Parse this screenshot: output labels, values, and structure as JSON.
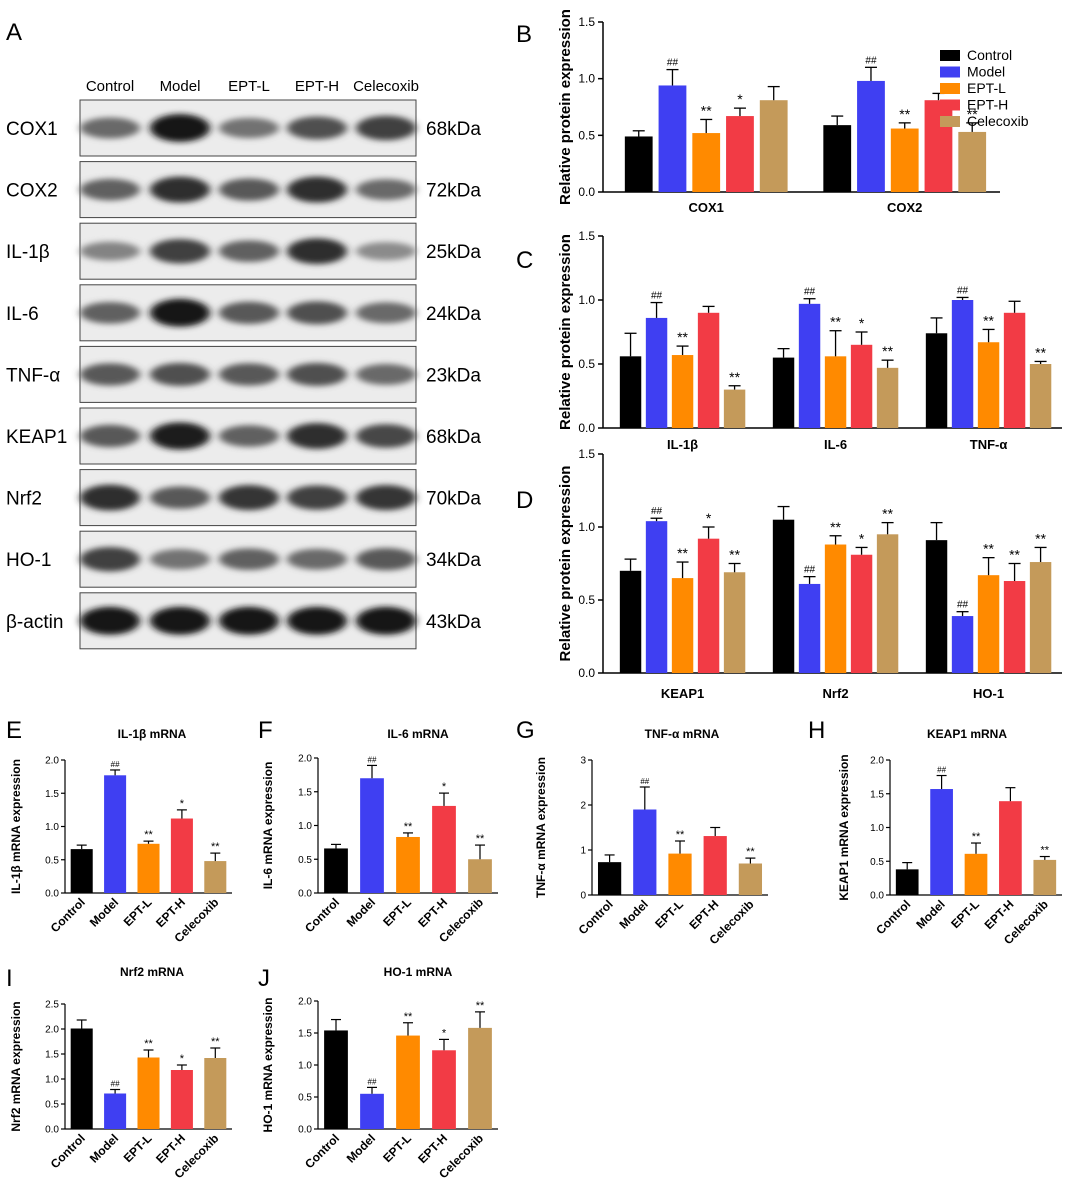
{
  "colors": {
    "Control": "#000000",
    "Model": "#3f3ff2",
    "EPT-L": "#ff8a00",
    "EPT-H": "#f23b45",
    "Celecoxib": "#c49a5a",
    "axis": "#000000"
  },
  "western_blot": {
    "panel_letter": "A",
    "lane_labels": [
      "Control",
      "Model",
      "EPT-L",
      "EPT-H",
      "Celecoxib"
    ],
    "bands": [
      {
        "protein": "COX1",
        "mw": "68kDa",
        "intensity": [
          0.5,
          1.0,
          0.45,
          0.65,
          0.75
        ]
      },
      {
        "protein": "COX2",
        "mw": "72kDa",
        "intensity": [
          0.55,
          0.85,
          0.6,
          0.85,
          0.5
        ]
      },
      {
        "protein": "IL-1β",
        "mw": "25kDa",
        "intensity": [
          0.35,
          0.75,
          0.55,
          0.85,
          0.3
        ]
      },
      {
        "protein": "IL-6",
        "mw": "24kDa",
        "intensity": [
          0.55,
          1.0,
          0.6,
          0.65,
          0.5
        ]
      },
      {
        "protein": "TNF-α",
        "mw": "23kDa",
        "intensity": [
          0.6,
          0.65,
          0.6,
          0.65,
          0.5
        ]
      },
      {
        "protein": "KEAP1",
        "mw": "68kDa",
        "intensity": [
          0.6,
          0.95,
          0.55,
          0.85,
          0.7
        ]
      },
      {
        "protein": "Nrf2",
        "mw": "70kDa",
        "intensity": [
          0.85,
          0.6,
          0.8,
          0.75,
          0.8
        ]
      },
      {
        "protein": "HO-1",
        "mw": "34kDa",
        "intensity": [
          0.75,
          0.45,
          0.55,
          0.5,
          0.6
        ]
      },
      {
        "protein": "β-actin",
        "mw": "43kDa",
        "intensity": [
          1.0,
          1.0,
          1.0,
          1.0,
          1.0
        ]
      }
    ]
  },
  "chart_data": [
    {
      "id": "B",
      "type": "bar",
      "ylabel": "Relative protein expression",
      "ylim": [
        0,
        1.5
      ],
      "yticks": [
        0.0,
        0.5,
        1.0,
        1.5
      ],
      "categories": [
        "COX1",
        "COX2"
      ],
      "legend": {
        "placement": "top-right",
        "entries": [
          "Control",
          "Model",
          "EPT-L",
          "EPT-H",
          "Celecoxib"
        ]
      },
      "series": [
        {
          "name": "Control",
          "values": [
            0.49,
            0.59
          ],
          "errors": [
            0.05,
            0.08
          ],
          "sig": [
            "",
            ""
          ]
        },
        {
          "name": "Model",
          "values": [
            0.94,
            0.98
          ],
          "errors": [
            0.14,
            0.12
          ],
          "sig": [
            "##",
            "##"
          ]
        },
        {
          "name": "EPT-L",
          "values": [
            0.52,
            0.56
          ],
          "errors": [
            0.12,
            0.05
          ],
          "sig": [
            "**",
            "**"
          ]
        },
        {
          "name": "EPT-H",
          "values": [
            0.67,
            0.81
          ],
          "errors": [
            0.07,
            0.06
          ],
          "sig": [
            "*",
            ""
          ]
        },
        {
          "name": "Celecoxib",
          "values": [
            0.81,
            0.53
          ],
          "errors": [
            0.12,
            0.08
          ],
          "sig": [
            "",
            "**"
          ]
        }
      ]
    },
    {
      "id": "C",
      "type": "bar",
      "ylabel": "Relative protein expression",
      "ylim": [
        0,
        1.5
      ],
      "yticks": [
        0.0,
        0.5,
        1.0,
        1.5
      ],
      "categories": [
        "IL-1β",
        "IL-6",
        "TNF-α"
      ],
      "series": [
        {
          "name": "Control",
          "values": [
            0.56,
            0.55,
            0.74
          ],
          "errors": [
            0.18,
            0.07,
            0.12
          ],
          "sig": [
            "",
            "",
            ""
          ]
        },
        {
          "name": "Model",
          "values": [
            0.86,
            0.97,
            1.0
          ],
          "errors": [
            0.12,
            0.04,
            0.02
          ],
          "sig": [
            "##",
            "##",
            "##"
          ]
        },
        {
          "name": "EPT-L",
          "values": [
            0.57,
            0.56,
            0.67
          ],
          "errors": [
            0.07,
            0.2,
            0.1
          ],
          "sig": [
            "**",
            "**",
            "**"
          ]
        },
        {
          "name": "EPT-H",
          "values": [
            0.9,
            0.65,
            0.9
          ],
          "errors": [
            0.05,
            0.1,
            0.09
          ],
          "sig": [
            "",
            "*",
            ""
          ]
        },
        {
          "name": "Celecoxib",
          "values": [
            0.3,
            0.47,
            0.5
          ],
          "errors": [
            0.03,
            0.06,
            0.02
          ],
          "sig": [
            "**",
            "**",
            "**"
          ]
        }
      ]
    },
    {
      "id": "D",
      "type": "bar",
      "ylabel": "Relative protein expression",
      "ylim": [
        0,
        1.5
      ],
      "yticks": [
        0.0,
        0.5,
        1.0,
        1.5
      ],
      "categories": [
        "KEAP1",
        "Nrf2",
        "HO-1"
      ],
      "series": [
        {
          "name": "Control",
          "values": [
            0.7,
            1.05,
            0.91
          ],
          "errors": [
            0.08,
            0.09,
            0.12
          ],
          "sig": [
            "",
            "",
            ""
          ]
        },
        {
          "name": "Model",
          "values": [
            1.04,
            0.61,
            0.39
          ],
          "errors": [
            0.02,
            0.05,
            0.03
          ],
          "sig": [
            "##",
            "##",
            "##"
          ]
        },
        {
          "name": "EPT-L",
          "values": [
            0.65,
            0.88,
            0.67
          ],
          "errors": [
            0.11,
            0.06,
            0.12
          ],
          "sig": [
            "**",
            "**",
            "**"
          ]
        },
        {
          "name": "EPT-H",
          "values": [
            0.92,
            0.81,
            0.63
          ],
          "errors": [
            0.08,
            0.05,
            0.12
          ],
          "sig": [
            "*",
            "*",
            "**"
          ]
        },
        {
          "name": "Celecoxib",
          "values": [
            0.69,
            0.95,
            0.76
          ],
          "errors": [
            0.06,
            0.08,
            0.1
          ],
          "sig": [
            "**",
            "**",
            "**"
          ]
        }
      ]
    },
    {
      "id": "E",
      "type": "bar",
      "title": "IL-1β mRNA",
      "ylabel": "IL-1β mRNA expression",
      "ylim": [
        0,
        2.0
      ],
      "yticks": [
        0.0,
        0.5,
        1.0,
        1.5,
        2.0
      ],
      "categories": [
        "Control",
        "Model",
        "EPT-L",
        "EPT-H",
        "Celecoxib"
      ],
      "values": [
        0.66,
        1.77,
        0.74,
        1.12,
        0.48
      ],
      "errors": [
        0.06,
        0.08,
        0.04,
        0.13,
        0.12
      ],
      "sig": [
        "",
        "##",
        "**",
        "*",
        "**"
      ]
    },
    {
      "id": "F",
      "type": "bar",
      "title": "IL-6 mRNA",
      "ylabel": "IL-6 mRNA expression",
      "ylim": [
        0,
        2.0
      ],
      "yticks": [
        0.0,
        0.5,
        1.0,
        1.5,
        2.0
      ],
      "categories": [
        "Control",
        "Model",
        "EPT-L",
        "EPT-H",
        "Celecoxib"
      ],
      "values": [
        0.66,
        1.7,
        0.83,
        1.29,
        0.5
      ],
      "errors": [
        0.06,
        0.19,
        0.06,
        0.19,
        0.21
      ],
      "sig": [
        "",
        "##",
        "**",
        "*",
        "**"
      ]
    },
    {
      "id": "G",
      "type": "bar",
      "title": "TNF-α mRNA",
      "ylabel": "TNF-α mRNA expression",
      "ylim": [
        0,
        3
      ],
      "yticks": [
        0,
        1,
        2,
        3
      ],
      "categories": [
        "Control",
        "Model",
        "EPT-L",
        "EPT-H",
        "Celecoxib"
      ],
      "values": [
        0.73,
        1.9,
        0.92,
        1.31,
        0.7
      ],
      "errors": [
        0.16,
        0.5,
        0.28,
        0.19,
        0.12
      ],
      "sig": [
        "",
        "##",
        "**",
        "",
        "**"
      ]
    },
    {
      "id": "H",
      "type": "bar",
      "title": "KEAP1 mRNA",
      "ylabel": "KEAP1 mRNA expression",
      "ylim": [
        0,
        2.0
      ],
      "yticks": [
        0.0,
        0.5,
        1.0,
        1.5,
        2.0
      ],
      "categories": [
        "Control",
        "Model",
        "EPT-L",
        "EPT-H",
        "Celecoxib"
      ],
      "values": [
        0.38,
        1.57,
        0.61,
        1.39,
        0.52
      ],
      "errors": [
        0.1,
        0.2,
        0.16,
        0.2,
        0.05
      ],
      "sig": [
        "",
        "##",
        "**",
        "",
        "**"
      ]
    },
    {
      "id": "I",
      "type": "bar",
      "title": "Nrf2 mRNA",
      "ylabel": "Nrf2 mRNA expression",
      "ylim": [
        0,
        2.5
      ],
      "yticks": [
        0.0,
        0.5,
        1.0,
        1.5,
        2.0,
        2.5
      ],
      "categories": [
        "Control",
        "Model",
        "EPT-L",
        "EPT-H",
        "Celecoxib"
      ],
      "values": [
        2.01,
        0.71,
        1.43,
        1.18,
        1.42
      ],
      "errors": [
        0.17,
        0.08,
        0.15,
        0.1,
        0.2
      ],
      "sig": [
        "",
        "##",
        "**",
        "*",
        "**"
      ]
    },
    {
      "id": "J",
      "type": "bar",
      "title": "HO-1 mRNA",
      "ylabel": "HO-1 mRNA expression",
      "ylim": [
        0,
        2.0
      ],
      "yticks": [
        0.0,
        0.5,
        1.0,
        1.5,
        2.0
      ],
      "categories": [
        "Control",
        "Model",
        "EPT-L",
        "EPT-H",
        "Celecoxib"
      ],
      "values": [
        1.54,
        0.55,
        1.46,
        1.23,
        1.58
      ],
      "errors": [
        0.17,
        0.1,
        0.2,
        0.17,
        0.25
      ],
      "sig": [
        "",
        "##",
        "**",
        "*",
        "**"
      ]
    }
  ]
}
